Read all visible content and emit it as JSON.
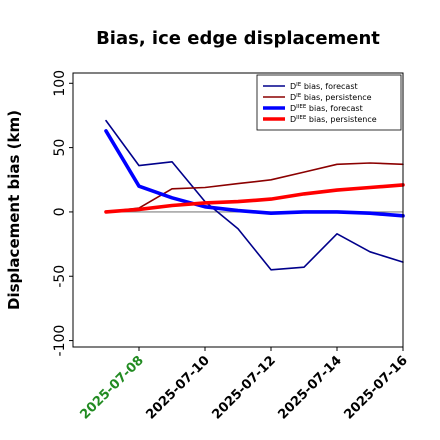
{
  "chart_data": {
    "type": "line",
    "title": "Bias, ice edge displacement",
    "xlabel": "",
    "ylabel": "Displacement bias (km)",
    "x": [
      "2025-07-07",
      "2025-07-08",
      "2025-07-09",
      "2025-07-10",
      "2025-07-11",
      "2025-07-12",
      "2025-07-13",
      "2025-07-14",
      "2025-07-15",
      "2025-07-16"
    ],
    "x_ticks": [
      "2025-07-08",
      "2025-07-10",
      "2025-07-12",
      "2025-07-14",
      "2025-07-16"
    ],
    "highlighted_tick": "2025-07-08",
    "highlight_color": "#228b22",
    "xlim": [
      "2025-07-06",
      "2025-07-16"
    ],
    "ylim": [
      -105,
      108
    ],
    "y_ticks": [
      -100,
      -50,
      0,
      50,
      100
    ],
    "grid": false,
    "legend_position": "top-right",
    "zero_line_color": "#808080",
    "series": [
      {
        "name_prefix": "D",
        "name_sup": "IE",
        "name_suffix": " bias, forecast",
        "color": "#00008b",
        "width": 1.6,
        "values": [
          71,
          36,
          39,
          8,
          -13,
          -45,
          -43,
          -17,
          -31,
          -39
        ]
      },
      {
        "name_prefix": "D",
        "name_sup": "IE",
        "name_suffix": " bias, persistence",
        "color": "#8b0000",
        "width": 1.6,
        "values": [
          0,
          3,
          18,
          19,
          22,
          25,
          31,
          37,
          38,
          37
        ]
      },
      {
        "name_prefix": "D",
        "name_sup": "IIEE",
        "name_suffix": " bias, forecast",
        "color": "#0000ff",
        "width": 3.6,
        "values": [
          63,
          20,
          11,
          4,
          1,
          -1,
          0,
          0,
          -1,
          -3
        ]
      },
      {
        "name_prefix": "D",
        "name_sup": "IIEE",
        "name_suffix": " bias, persistence",
        "color": "#ff0000",
        "width": 3.6,
        "values": [
          0,
          2,
          5,
          7,
          8,
          10,
          14,
          17,
          19,
          21
        ]
      }
    ]
  }
}
